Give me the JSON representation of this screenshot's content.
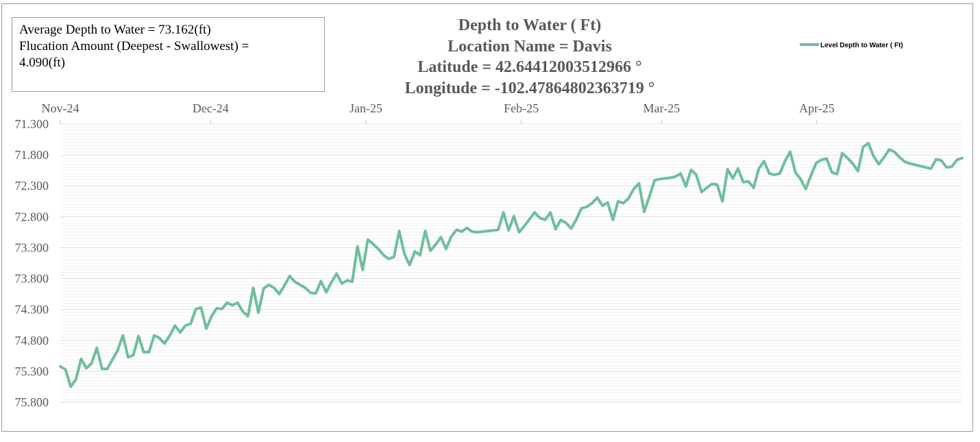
{
  "stats": {
    "average_line": "Average Depth to Water = 73.162(ft)",
    "fluctuation_line": "Flucation Amount (Deepest - Swallowest) =",
    "fluctuation_value": "4.090(ft)"
  },
  "chart_data": {
    "type": "line",
    "title": "Depth to Water ( Ft)",
    "subtitles": [
      "Location Name = Davis",
      "Latitude = 42.64412003512966 °",
      "Longitude = -102.47864802363719 °"
    ],
    "xlabel": "",
    "ylabel": "",
    "x_tick_labels": [
      "Nov-24",
      "Dec-24",
      "Jan-25",
      "Feb-25",
      "Mar-25",
      "Apr-25"
    ],
    "y_tick_labels": [
      "71.300",
      "71.800",
      "72.300",
      "72.800",
      "73.300",
      "73.800",
      "74.300",
      "74.800",
      "75.300",
      "75.800"
    ],
    "ylim": [
      71.3,
      75.8
    ],
    "y_inverted": true,
    "grid": true,
    "legend_position": "top-right",
    "colors": {
      "series": "#6fbf9b",
      "grid": "#e6e6e6",
      "tick": "#595959"
    },
    "series": [
      {
        "name": "Level Depth to Water ( Ft)",
        "start_date": "2024-11-01",
        "values": [
          75.22,
          75.27,
          75.55,
          75.43,
          75.1,
          75.25,
          75.17,
          74.92,
          75.26,
          75.26,
          75.11,
          74.96,
          74.72,
          75.07,
          75.04,
          74.73,
          74.99,
          74.99,
          74.72,
          74.76,
          74.85,
          74.72,
          74.56,
          74.67,
          74.56,
          74.53,
          74.29,
          74.27,
          74.61,
          74.41,
          74.28,
          74.29,
          74.19,
          74.23,
          74.19,
          74.33,
          74.41,
          73.95,
          74.35,
          73.96,
          73.9,
          73.95,
          74.05,
          73.91,
          73.76,
          73.85,
          73.9,
          73.95,
          74.03,
          74.04,
          73.84,
          74.02,
          73.86,
          73.72,
          73.88,
          73.83,
          73.85,
          73.28,
          73.66,
          73.17,
          73.24,
          73.32,
          73.42,
          73.48,
          73.45,
          73.03,
          73.4,
          73.58,
          73.36,
          73.42,
          73.03,
          73.35,
          73.25,
          73.13,
          73.32,
          73.12,
          73.01,
          73.04,
          72.98,
          73.04,
          73.05,
          73.04,
          73.03,
          73.02,
          73.01,
          72.73,
          73.02,
          72.79,
          73.05,
          72.95,
          72.84,
          72.73,
          72.82,
          72.85,
          72.73,
          73.0,
          72.85,
          72.9,
          72.99,
          72.84,
          72.66,
          72.64,
          72.58,
          72.49,
          72.62,
          72.57,
          72.85,
          72.55,
          72.58,
          72.5,
          72.35,
          72.26,
          72.72,
          72.47,
          72.21,
          72.19,
          72.18,
          72.17,
          72.15,
          72.1,
          72.31,
          72.04,
          72.12,
          72.4,
          72.33,
          72.27,
          72.28,
          72.55,
          72.03,
          72.18,
          72.02,
          72.24,
          72.23,
          72.33,
          72.02,
          71.9,
          72.1,
          72.12,
          72.1,
          71.9,
          71.75,
          72.08,
          72.19,
          72.35,
          72.13,
          71.93,
          71.88,
          71.86,
          72.08,
          72.11,
          71.77,
          71.85,
          71.94,
          72.06,
          71.67,
          71.61,
          71.82,
          71.95,
          71.84,
          71.71,
          71.75,
          71.84,
          71.91,
          71.94,
          71.96,
          71.98,
          72.0,
          72.02,
          71.87,
          71.89,
          72.0,
          71.99,
          71.88,
          71.85
        ]
      }
    ]
  }
}
